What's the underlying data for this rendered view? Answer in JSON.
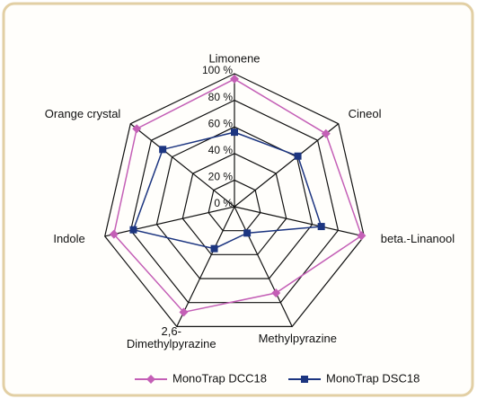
{
  "chart_data": {
    "type": "radar",
    "categories": [
      "Limonene",
      "Cineol",
      "beta.-Linanool",
      "Methylpyrazine",
      "2,6-\nDimethylpyrazine",
      "Indole",
      "Orange crystal"
    ],
    "series": [
      {
        "name": "MonoTrap DCC18",
        "color": "#c45fb6",
        "marker": "diamond",
        "values": [
          96,
          88,
          98,
          72,
          88,
          93,
          94
        ]
      },
      {
        "name": "MonoTrap DSC18",
        "color": "#1c3580",
        "marker": "square",
        "values": [
          56,
          61,
          67,
          22,
          35,
          78,
          69
        ]
      }
    ],
    "ylim": [
      0,
      100
    ],
    "yticks": [
      {
        "value": 0,
        "label": "0 %"
      },
      {
        "value": 20,
        "label": "20 %"
      },
      {
        "value": 40,
        "label": "40 %"
      },
      {
        "value": 60,
        "label": "60 %"
      },
      {
        "value": 80,
        "label": "80 %"
      },
      {
        "value": 100,
        "label": "100 %"
      }
    ],
    "grid": true,
    "legend": "bottom"
  }
}
